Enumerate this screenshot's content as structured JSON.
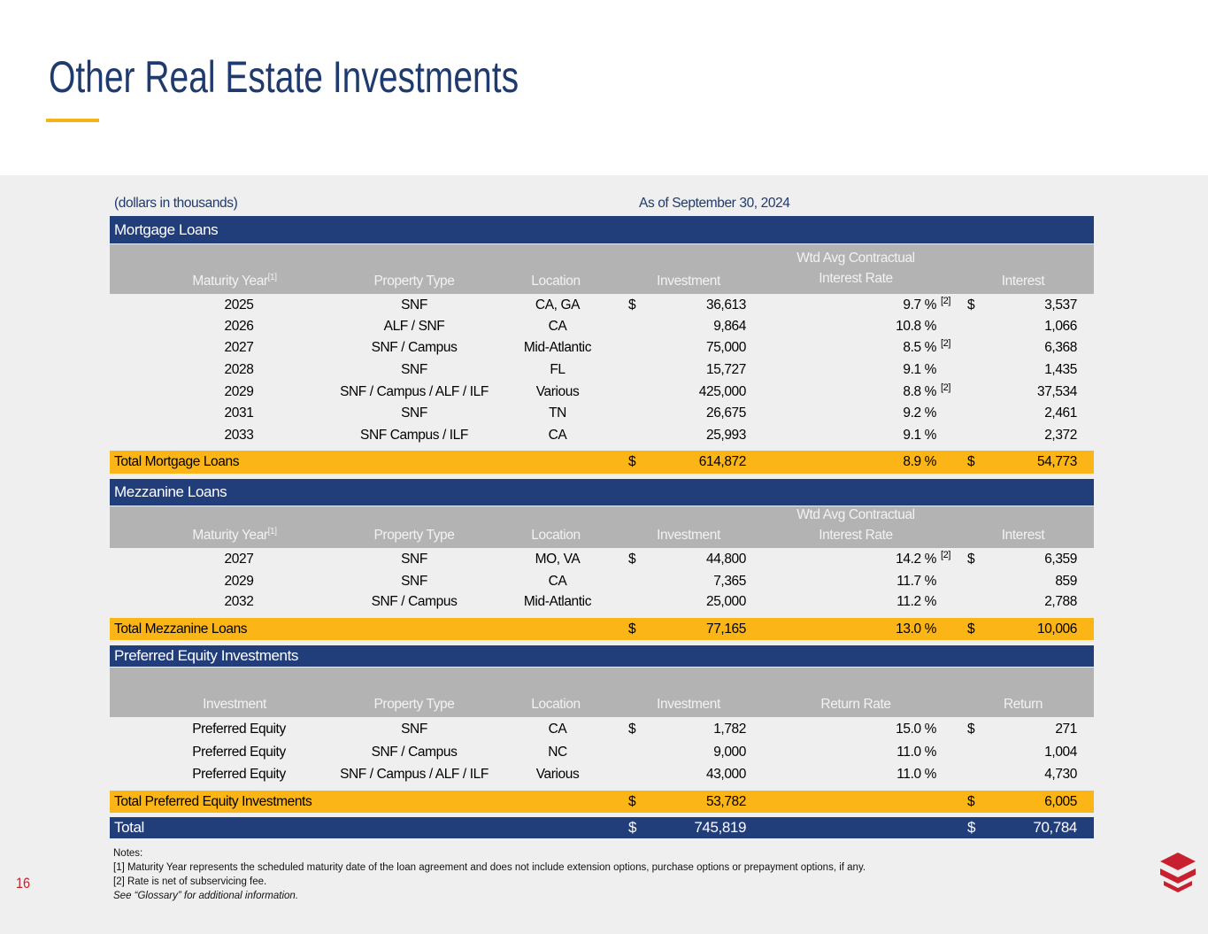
{
  "header": {
    "title": "Other Real Estate Investments"
  },
  "table": {
    "units": "(dollars in thousands)",
    "as_of": "As of September 30, 2024",
    "sections": [
      {
        "title": "Mortgage Loans",
        "columns": [
          {
            "label": "Maturity Year",
            "note": "[1]"
          },
          {
            "label": "Property Type"
          },
          {
            "label": "Location"
          },
          {
            "label": "Investment"
          },
          {
            "label": [
              "Wtd Avg Contractual",
              "Interest Rate"
            ]
          },
          {
            "label": "Interest"
          }
        ],
        "rows": [
          {
            "year": "2025",
            "type": "SNF",
            "location": "CA, GA",
            "inv_sign": "$",
            "investment": "36,613",
            "rate": "9.7 %",
            "rate_note": "[2]",
            "int_sign": "$",
            "interest": "3,537"
          },
          {
            "year": "2026",
            "type": "ALF / SNF",
            "location": "CA",
            "investment": "9,864",
            "rate": "10.8 %",
            "interest": "1,066"
          },
          {
            "year": "2027",
            "type": "SNF / Campus",
            "location": "Mid-Atlantic",
            "investment": "75,000",
            "rate": "8.5 %",
            "rate_note": "[2]",
            "interest": "6,368"
          },
          {
            "year": "2028",
            "type": "SNF",
            "location": "FL",
            "investment": "15,727",
            "rate": "9.1 %",
            "interest": "1,435"
          },
          {
            "year": "2029",
            "type": "SNF / Campus / ALF / ILF",
            "location": "Various",
            "investment": "425,000",
            "rate": "8.8 %",
            "rate_note": "[2]",
            "interest": "37,534"
          },
          {
            "year": "2031",
            "type": "SNF",
            "location": "TN",
            "investment": "26,675",
            "rate": "9.2 %",
            "interest": "2,461"
          },
          {
            "year": "2033",
            "type": "SNF Campus / ILF",
            "location": "CA",
            "investment": "25,993",
            "rate": "9.1 %",
            "interest": "2,372"
          }
        ],
        "total": {
          "label": "Total Mortgage Loans",
          "inv_sign": "$",
          "investment": "614,872",
          "rate": "8.9 %",
          "int_sign": "$",
          "interest": "54,773"
        }
      },
      {
        "title": "Mezzanine Loans",
        "columns": [
          {
            "label": "Maturity Year",
            "note": "[1]"
          },
          {
            "label": "Property Type"
          },
          {
            "label": "Location"
          },
          {
            "label": "Investment"
          },
          {
            "label": [
              "Wtd Avg Contractual",
              "Interest Rate"
            ]
          },
          {
            "label": "Interest"
          }
        ],
        "rows": [
          {
            "year": "2027",
            "type": "SNF",
            "location": "MO, VA",
            "inv_sign": "$",
            "investment": "44,800",
            "rate": "14.2 %",
            "rate_note": "[2]",
            "int_sign": "$",
            "interest": "6,359"
          },
          {
            "year": "2029",
            "type": "SNF",
            "location": "CA",
            "investment": "7,365",
            "rate": "11.7 %",
            "interest": "859"
          },
          {
            "year": "2032",
            "type": "SNF / Campus",
            "location": "Mid-Atlantic",
            "investment": "25,000",
            "rate": "11.2 %",
            "interest": "2,788"
          }
        ],
        "total": {
          "label": "Total Mezzanine Loans",
          "inv_sign": "$",
          "investment": "77,165",
          "rate": "13.0 %",
          "int_sign": "$",
          "interest": "10,006"
        }
      },
      {
        "title": "Preferred Equity Investments",
        "columns": [
          {
            "label": "Investment"
          },
          {
            "label": "Property Type"
          },
          {
            "label": "Location"
          },
          {
            "label": "Investment"
          },
          {
            "label": "Return Rate"
          },
          {
            "label": "Return"
          }
        ],
        "rows": [
          {
            "year": "Preferred Equity",
            "type": "SNF",
            "location": "CA",
            "inv_sign": "$",
            "investment": "1,782",
            "rate": "15.0 %",
            "int_sign": "$",
            "interest": "271"
          },
          {
            "year": "Preferred Equity",
            "type": "SNF / Campus",
            "location": "NC",
            "investment": "9,000",
            "rate": "11.0 %",
            "interest": "1,004"
          },
          {
            "year": "Preferred Equity",
            "type": "SNF / Campus / ALF / ILF",
            "location": "Various",
            "investment": "43,000",
            "rate": "11.0 %",
            "interest": "4,730"
          }
        ],
        "total": {
          "label": "Total Preferred Equity Investments",
          "inv_sign": "$",
          "investment": "53,782",
          "int_sign": "$",
          "interest": "6,005"
        }
      }
    ],
    "grand_total": {
      "label": "Total",
      "inv_sign": "$",
      "investment": "745,819",
      "int_sign": "$",
      "interest": "70,784"
    }
  },
  "notes": {
    "heading": "Notes:",
    "items": [
      "[1] Maturity Year represents the scheduled maturity date of the loan agreement and does not include extension options, purchase options or prepayment options, if any.",
      "[2] Rate is net of subservicing fee."
    ],
    "see": "See “Glossary” for additional information."
  },
  "page_number": "16"
}
